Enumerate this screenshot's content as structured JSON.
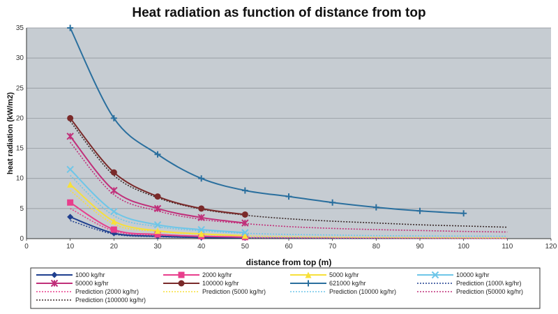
{
  "chart_data": {
    "type": "line",
    "title": "Heat radiation as function of distance from top",
    "xlabel": "distance from top (m)",
    "ylabel": "heat radiation (kW/m2)",
    "xlim": [
      0,
      120
    ],
    "ylim": [
      0,
      35
    ],
    "x_ticks": [
      0,
      10,
      20,
      30,
      40,
      50,
      60,
      70,
      80,
      90,
      100,
      110,
      120
    ],
    "y_ticks": [
      0,
      5,
      10,
      15,
      20,
      25,
      30,
      35
    ],
    "grid": true,
    "legend_position": "bottom",
    "series": [
      {
        "name": "1000 kg/hr",
        "color": "#1f3f8f",
        "marker": "diamond",
        "style": "solid",
        "x": [
          10,
          20,
          30,
          40,
          50
        ],
        "y": [
          3.6,
          0.9,
          0.4,
          0.2,
          0.15
        ]
      },
      {
        "name": "2000 kg/hr",
        "color": "#e83e8c",
        "marker": "square",
        "style": "solid",
        "x": [
          10,
          20,
          30,
          40,
          50
        ],
        "y": [
          6.0,
          1.5,
          0.7,
          0.4,
          0.25
        ]
      },
      {
        "name": "5000 kg/hr",
        "color": "#f7e03a",
        "marker": "triangle",
        "style": "solid",
        "x": [
          10,
          20,
          30,
          40,
          50
        ],
        "y": [
          9.0,
          2.9,
          1.3,
          0.8,
          0.5
        ]
      },
      {
        "name": "10000 kg/hr",
        "color": "#6ec6e8",
        "marker": "x",
        "style": "solid",
        "x": [
          10,
          20,
          30,
          40,
          50
        ],
        "y": [
          11.5,
          4.5,
          2.3,
          1.5,
          1.0
        ]
      },
      {
        "name": "50000 kg/hr",
        "color": "#c0307a",
        "marker": "asterisk",
        "style": "solid",
        "x": [
          10,
          20,
          30,
          40,
          50
        ],
        "y": [
          17.0,
          8.0,
          5.0,
          3.5,
          2.6
        ]
      },
      {
        "name": "100000 kg/hr",
        "color": "#7a2a2a",
        "marker": "circle",
        "style": "solid",
        "x": [
          10,
          20,
          30,
          40,
          50
        ],
        "y": [
          20.0,
          11.0,
          7.0,
          5.0,
          4.0
        ]
      },
      {
        "name": "621000 kg/hr",
        "color": "#2a6f9e",
        "marker": "plus",
        "style": "solid",
        "x": [
          10,
          20,
          30,
          40,
          50,
          60,
          70,
          80,
          90,
          100
        ],
        "y": [
          35.0,
          20.0,
          14.0,
          10.0,
          8.0,
          7.0,
          6.0,
          5.2,
          4.6,
          4.2
        ]
      },
      {
        "name": "Prediction (1000 kg/hr)",
        "color": "#1f3f8f",
        "marker": "none",
        "style": "dotted",
        "x": [
          10,
          20,
          30,
          40,
          50,
          60,
          70,
          80,
          90,
          100,
          110
        ],
        "y": [
          3.0,
          0.75,
          0.33,
          0.19,
          0.12,
          0.08,
          0.06,
          0.05,
          0.04,
          0.03,
          0.03
        ]
      },
      {
        "name": "Prediction (2000 kg/hr)",
        "color": "#e83e8c",
        "marker": "none",
        "style": "dotted",
        "x": [
          10,
          20,
          30,
          40,
          50,
          60,
          70,
          80,
          90,
          100,
          110
        ],
        "y": [
          5.0,
          1.25,
          0.56,
          0.31,
          0.2,
          0.14,
          0.1,
          0.08,
          0.06,
          0.05,
          0.04
        ]
      },
      {
        "name": "Prediction (5000 kg/hr)",
        "color": "#f7e03a",
        "marker": "none",
        "style": "dotted",
        "x": [
          10,
          20,
          30,
          40,
          50,
          60,
          70,
          80,
          90,
          100,
          110
        ],
        "y": [
          8.0,
          2.4,
          1.2,
          0.7,
          0.45,
          0.32,
          0.24,
          0.19,
          0.15,
          0.12,
          0.1
        ]
      },
      {
        "name": "Prediction (10000 kg/hr)",
        "color": "#6ec6e8",
        "marker": "none",
        "style": "dotted",
        "x": [
          10,
          20,
          30,
          40,
          50,
          60,
          70,
          80,
          90,
          100,
          110
        ],
        "y": [
          10.5,
          3.8,
          2.0,
          1.3,
          0.9,
          0.7,
          0.6,
          0.5,
          0.45,
          0.42,
          0.4
        ]
      },
      {
        "name": "Prediction (50000 kg/hr)",
        "color": "#c0307a",
        "marker": "none",
        "style": "dotted",
        "x": [
          10,
          20,
          30,
          40,
          50,
          60,
          70,
          80,
          90,
          100,
          110
        ],
        "y": [
          16.0,
          7.3,
          4.6,
          3.2,
          2.5,
          2.0,
          1.7,
          1.5,
          1.35,
          1.2,
          1.1
        ]
      },
      {
        "name": "Prediction (100000 kg/hr)",
        "color": "#3a2a2a",
        "marker": "none",
        "style": "dotted",
        "x": [
          10,
          20,
          30,
          40,
          50,
          60,
          70,
          80,
          90,
          100,
          110
        ],
        "y": [
          19.5,
          10.5,
          6.8,
          4.9,
          3.9,
          3.3,
          2.9,
          2.6,
          2.3,
          2.1,
          1.9
        ]
      }
    ],
    "legend_labels": [
      "1000 kg/hr",
      "2000 kg/hr",
      "5000 kg/hr",
      "10000 kg/hr",
      "50000 kg/hr",
      "100000 kg/hr",
      "621000 kg/hr",
      "Prediction (1000\\ kg/hr)",
      "Prediction (2000 kg/hr)",
      "Prediction (5000 kg/hr)",
      "Prediction (10000 kg/hr)",
      "Prediction (50000 kg/hr)",
      "Prediction (100000 kg/hr)"
    ]
  }
}
